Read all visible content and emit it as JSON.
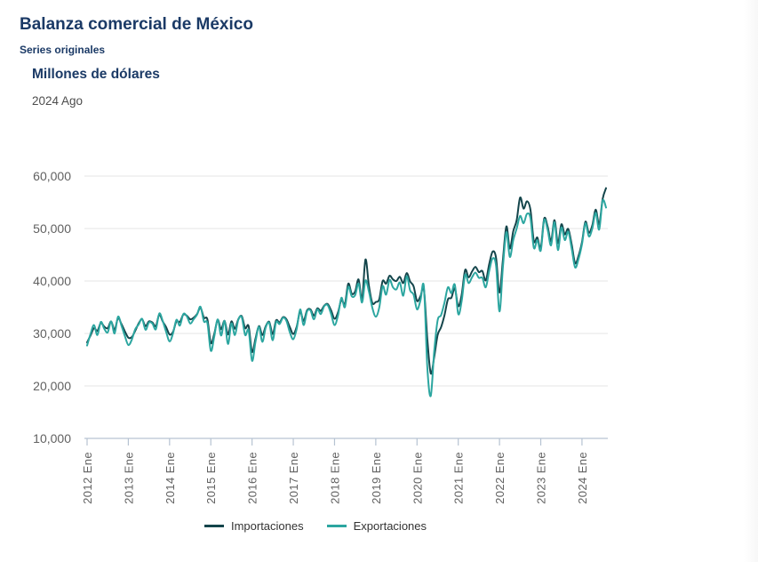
{
  "header": {
    "title": "Balanza comercial de México",
    "subtitle": "Series originales",
    "units": "Millones de dólares",
    "period": "2024 Ago"
  },
  "chart_data": {
    "type": "line",
    "title": "Balanza comercial de México",
    "ylabel": "Millones de dólares",
    "ylim": [
      10000,
      60000
    ],
    "y_ticks": [
      10000,
      20000,
      30000,
      40000,
      50000,
      60000
    ],
    "x_range": [
      "2012 Ene",
      "2024 Ago"
    ],
    "x_tick_labels": [
      "2012 Ene",
      "2013 Ene",
      "2014 Ene",
      "2015 Ene",
      "2016 Ene",
      "2017 Ene",
      "2018 Ene",
      "2019 Ene",
      "2020 Ene",
      "2021 Ene",
      "2022 Ene",
      "2023 Ene",
      "2024 Ene"
    ],
    "grid": true,
    "legend_position": "bottom",
    "series": [
      {
        "name": "Importaciones",
        "color": "#14454b",
        "values": [
          28300,
          29600,
          31000,
          30500,
          32000,
          31300,
          31000,
          32300,
          30700,
          32900,
          31800,
          30400,
          29200,
          29300,
          30500,
          31900,
          32700,
          31400,
          32300,
          32100,
          31400,
          33600,
          32300,
          31200,
          29800,
          30300,
          32300,
          32200,
          33600,
          33400,
          32700,
          33000,
          33700,
          34900,
          33000,
          32700,
          28200,
          29900,
          32600,
          30800,
          32400,
          29800,
          32300,
          30900,
          32700,
          33300,
          31000,
          31400,
          26500,
          29000,
          31400,
          29700,
          31400,
          32200,
          29900,
          32500,
          32100,
          33100,
          32700,
          31200,
          29900,
          31300,
          34200,
          32400,
          34400,
          34600,
          33400,
          34800,
          34300,
          35300,
          35600,
          34400,
          32800,
          34000,
          36400,
          35600,
          39500,
          37600,
          38000,
          40300,
          36500,
          44100,
          39100,
          35800,
          36000,
          36500,
          40000,
          39500,
          41000,
          40300,
          40000,
          40800,
          39600,
          41500,
          39900,
          39000,
          36200,
          37100,
          38400,
          28900,
          22400,
          25500,
          29700,
          31200,
          33500,
          36500,
          36800,
          38600,
          35200,
          37400,
          42100,
          40700,
          41800,
          42700,
          41700,
          41900,
          40100,
          43200,
          45600,
          44400,
          37800,
          44100,
          50400,
          46200,
          49500,
          51600,
          55900,
          53800,
          55200,
          53600,
          47600,
          48300,
          46300,
          51900,
          50400,
          47600,
          51600,
          47200,
          50800,
          48900,
          49900,
          47000,
          43400,
          44800,
          47400,
          51300,
          49200,
          50600,
          53600,
          50800,
          55600,
          57700
        ]
      },
      {
        "name": "Exportaciones",
        "color": "#2ca6a0",
        "values": [
          27700,
          29900,
          31600,
          29700,
          32200,
          30900,
          30200,
          32300,
          30000,
          33200,
          31500,
          29500,
          27800,
          28800,
          30800,
          31700,
          32800,
          30700,
          32100,
          31900,
          30800,
          33800,
          32400,
          30300,
          28500,
          30000,
          32600,
          31500,
          33700,
          33300,
          31900,
          32700,
          33600,
          35100,
          32300,
          32000,
          26700,
          29400,
          32700,
          29600,
          32400,
          28000,
          31900,
          29700,
          32600,
          33100,
          29700,
          30600,
          24800,
          28400,
          31300,
          28400,
          31200,
          32000,
          28700,
          32200,
          31800,
          33000,
          32400,
          30200,
          28900,
          30900,
          34600,
          31600,
          34200,
          34400,
          32700,
          34600,
          33700,
          35200,
          35400,
          33700,
          31600,
          33400,
          36800,
          35000,
          38900,
          37100,
          37300,
          39500,
          35900,
          40100,
          38000,
          34900,
          33200,
          34900,
          39000,
          37400,
          40200,
          38800,
          38400,
          39700,
          37200,
          40900,
          38200,
          37400,
          34600,
          36300,
          38900,
          23500,
          18100,
          26600,
          32500,
          33500,
          35900,
          38800,
          37700,
          39300,
          33700,
          36200,
          41200,
          39600,
          40700,
          41600,
          40600,
          40600,
          38800,
          41900,
          44300,
          42900,
          34200,
          42700,
          49300,
          44600,
          47800,
          50000,
          52400,
          51000,
          52800,
          52000,
          46300,
          47800,
          45800,
          51600,
          49800,
          46800,
          51200,
          45900,
          50200,
          47800,
          49400,
          46200,
          42600,
          44200,
          47000,
          51000,
          48500,
          50000,
          53000,
          49800,
          55300,
          54000
        ]
      }
    ],
    "axis_style": {
      "grid_color": "#e6e6e6",
      "axis_color": "#b6c3d2",
      "tick_label_color": "#616161"
    }
  }
}
